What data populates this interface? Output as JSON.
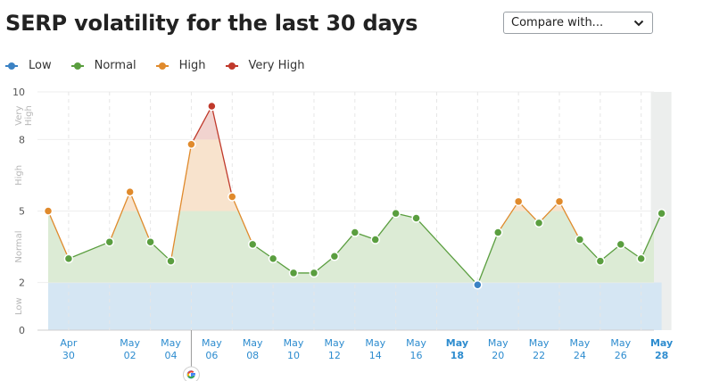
{
  "header": {
    "title": "SERP volatility for the last 30 days",
    "compare_label": "Compare with..."
  },
  "legend": [
    {
      "label": "Low",
      "color": "#3b82c4"
    },
    {
      "label": "Normal",
      "color": "#5a9e3f"
    },
    {
      "label": "High",
      "color": "#e08a2c"
    },
    {
      "label": "Very High",
      "color": "#c0392b"
    }
  ],
  "chart_data": {
    "type": "line",
    "y_ticks": [
      "0",
      "2",
      "5",
      "8",
      "10"
    ],
    "band_labels": [
      "Low",
      "Normal",
      "High",
      "Very High"
    ],
    "x_ticks": [
      {
        "month": "Apr",
        "day": "30"
      },
      {
        "month": "May",
        "day": "02"
      },
      {
        "month": "May",
        "day": "04"
      },
      {
        "month": "May",
        "day": "06"
      },
      {
        "month": "May",
        "day": "08"
      },
      {
        "month": "May",
        "day": "10"
      },
      {
        "month": "May",
        "day": "12"
      },
      {
        "month": "May",
        "day": "14"
      },
      {
        "month": "May",
        "day": "16"
      },
      {
        "month": "May",
        "day": "18"
      },
      {
        "month": "May",
        "day": "20"
      },
      {
        "month": "May",
        "day": "22"
      },
      {
        "month": "May",
        "day": "24"
      },
      {
        "month": "May",
        "day": "26"
      },
      {
        "month": "May",
        "day": "28"
      }
    ],
    "ylim": [
      0,
      10
    ],
    "points": [
      {
        "date": "Apr 29",
        "value": 5.0,
        "level": "High"
      },
      {
        "date": "Apr 30",
        "value": 3.0,
        "level": "Normal"
      },
      {
        "date": "May 01",
        "value": 3.7,
        "level": "Normal"
      },
      {
        "date": "May 02",
        "value": 5.8,
        "level": "High"
      },
      {
        "date": "May 03",
        "value": 3.7,
        "level": "Normal"
      },
      {
        "date": "May 04",
        "value": 2.9,
        "level": "Normal"
      },
      {
        "date": "May 05",
        "value": 7.8,
        "level": "High"
      },
      {
        "date": "May 06",
        "value": 9.4,
        "level": "Very High"
      },
      {
        "date": "May 07",
        "value": 5.6,
        "level": "High"
      },
      {
        "date": "May 08",
        "value": 3.6,
        "level": "Normal"
      },
      {
        "date": "May 09",
        "value": 3.0,
        "level": "Normal"
      },
      {
        "date": "May 10",
        "value": 2.4,
        "level": "Normal"
      },
      {
        "date": "May 11",
        "value": 2.4,
        "level": "Normal"
      },
      {
        "date": "May 12",
        "value": 3.1,
        "level": "Normal"
      },
      {
        "date": "May 13",
        "value": 4.1,
        "level": "Normal"
      },
      {
        "date": "May 14",
        "value": 3.8,
        "level": "Normal"
      },
      {
        "date": "May 15",
        "value": 4.9,
        "level": "Normal"
      },
      {
        "date": "May 16",
        "value": 4.7,
        "level": "Normal"
      },
      {
        "date": "May 19",
        "value": 1.9,
        "level": "Low"
      },
      {
        "date": "May 20",
        "value": 4.1,
        "level": "Normal"
      },
      {
        "date": "May 21",
        "value": 5.4,
        "level": "High"
      },
      {
        "date": "May 22",
        "value": 4.5,
        "level": "Normal"
      },
      {
        "date": "May 23",
        "value": 5.4,
        "level": "High"
      },
      {
        "date": "May 24",
        "value": 3.8,
        "level": "Normal"
      },
      {
        "date": "May 25",
        "value": 2.9,
        "level": "Normal"
      },
      {
        "date": "May 26",
        "value": 3.6,
        "level": "Normal"
      },
      {
        "date": "May 27",
        "value": 3.0,
        "level": "Normal"
      },
      {
        "date": "May 28",
        "value": 4.9,
        "level": "Normal"
      }
    ],
    "annotation": {
      "date": "May 05",
      "icon": "google-icon"
    },
    "highlighted_date": "May 28"
  }
}
